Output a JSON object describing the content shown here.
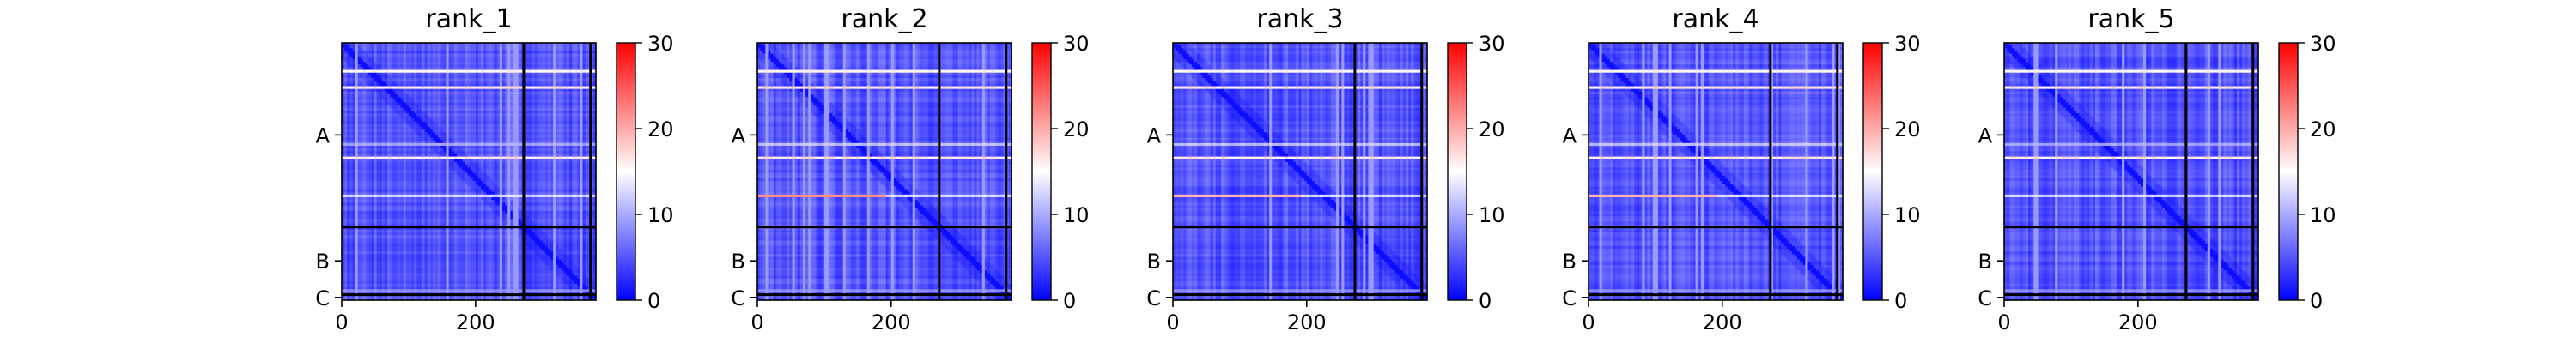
{
  "chart_data": {
    "type": "heatmap",
    "description_colormap": "bwr",
    "colormap": [
      "#0000ff",
      "#ffffff",
      "#ff0000"
    ],
    "vmin": 0,
    "vmax": 30,
    "colorbar_ticks": [
      "0",
      "10",
      "20",
      "30"
    ],
    "x_ticks": [
      "0",
      "200"
    ],
    "x_tick_values": [
      0,
      200
    ],
    "xlim": [
      0,
      380
    ],
    "chain_labels": [
      "A",
      "B",
      "C"
    ],
    "chain_boundaries": [
      0,
      272,
      372,
      380
    ],
    "panels": [
      {
        "title": "rank_1",
        "hot_rows": [
          [
            40,
            0.55
          ],
          [
            66,
            0.6
          ],
          [
            148,
            0.35
          ],
          [
            168,
            0.6
          ],
          [
            224,
            0.45
          ],
          [
            367,
            0.3
          ]
        ],
        "hot_band": null
      },
      {
        "title": "rank_2",
        "hot_rows": [
          [
            40,
            0.55
          ],
          [
            66,
            0.6
          ],
          [
            148,
            0.4
          ],
          [
            168,
            0.6
          ],
          [
            224,
            0.45
          ],
          [
            367,
            0.3
          ]
        ],
        "hot_band": {
          "row": 224,
          "x_end": 190,
          "level": 0.72
        }
      },
      {
        "title": "rank_3",
        "hot_rows": [
          [
            40,
            0.55
          ],
          [
            66,
            0.6
          ],
          [
            148,
            0.4
          ],
          [
            168,
            0.6
          ],
          [
            224,
            0.45
          ],
          [
            367,
            0.3
          ]
        ],
        "hot_band": {
          "row": 224,
          "x_end": 190,
          "level": 0.65
        }
      },
      {
        "title": "rank_4",
        "hot_rows": [
          [
            40,
            0.55
          ],
          [
            66,
            0.6
          ],
          [
            148,
            0.4
          ],
          [
            168,
            0.6
          ],
          [
            224,
            0.45
          ],
          [
            367,
            0.3
          ]
        ],
        "hot_band": {
          "row": 224,
          "x_end": 190,
          "level": 0.65
        }
      },
      {
        "title": "rank_5",
        "hot_rows": [
          [
            40,
            0.55
          ],
          [
            66,
            0.6
          ],
          [
            148,
            0.35
          ],
          [
            168,
            0.6
          ],
          [
            224,
            0.45
          ],
          [
            367,
            0.3
          ]
        ],
        "hot_band": null
      }
    ]
  }
}
